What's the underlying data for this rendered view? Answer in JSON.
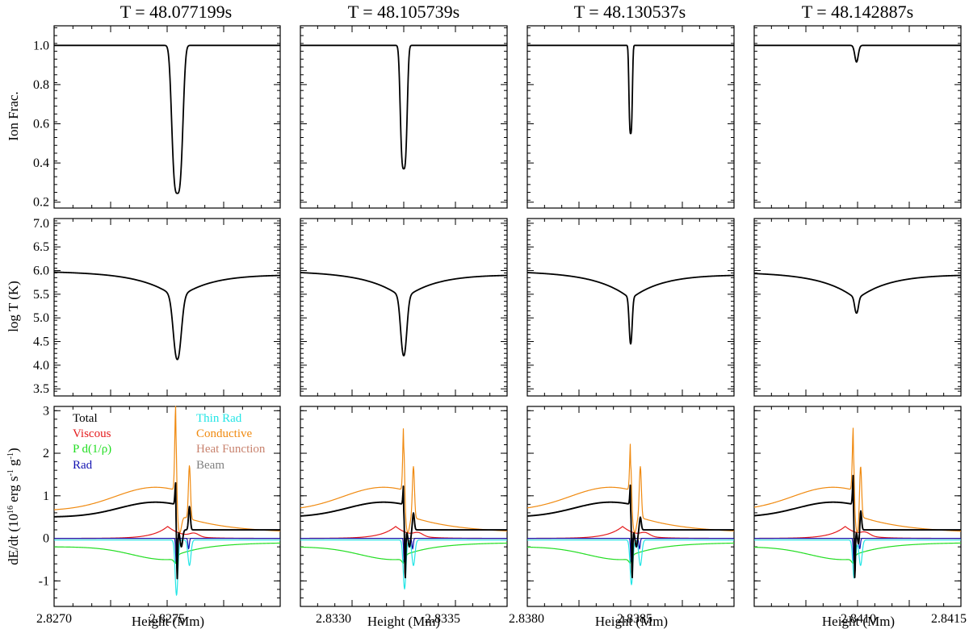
{
  "figure": {
    "titles": [
      "T = 48.077199s",
      "T = 48.105739s",
      "T = 48.130537s",
      "T = 48.142887s"
    ],
    "xlabel": "Height (Mm)",
    "row_ylabels": [
      "Ion Frac.",
      "log T (K)",
      "dE/dt (10",
      "16",
      " erg s",
      "-1",
      " g",
      "-1",
      ")"
    ]
  },
  "legend": {
    "entries": [
      {
        "label": "Total",
        "color": "#000000"
      },
      {
        "label": "Viscous",
        "color": "#e41a1c"
      },
      {
        "label": "P d(1/ρ)",
        "color": "#22dd22"
      },
      {
        "label": "Rad",
        "color": "#1010b0"
      },
      {
        "label": "Thin Rad",
        "color": "#22e5e5"
      },
      {
        "label": "Conductive",
        "color": "#f08a10"
      },
      {
        "label": "Heat Function",
        "color": "#c8826e"
      },
      {
        "label": "Beam",
        "color": "#808080"
      }
    ]
  },
  "chart_data": [
    {
      "type": "line",
      "name": "ion_fraction_row",
      "ylabel": "Ion Frac.",
      "ylim": [
        0.17,
        1.1
      ],
      "yticks": [
        0.2,
        0.4,
        0.6,
        0.8,
        1.0
      ],
      "ytick_labels": [
        "0.2",
        "0.4",
        "0.6",
        "0.8",
        "1.0"
      ],
      "panels": [
        {
          "title": "T = 48.077199s",
          "xlim": [
            2.827,
            2.82777
          ],
          "center": 2.8275,
          "min": 0.245,
          "half_width": 1.8e-05,
          "shape": "box"
        },
        {
          "title": "T = 48.105739s",
          "xlim": [
            2.83285,
            2.83362
          ],
          "center": 2.83335,
          "min": 0.37,
          "half_width": 1.2e-05,
          "shape": "box"
        },
        {
          "title": "T = 48.130537s",
          "xlim": [
            2.83795,
            2.83872
          ],
          "center": 2.8385,
          "min": 0.55,
          "half_width": 6e-06,
          "shape": "box"
        },
        {
          "title": "T = 48.142887s",
          "xlim": [
            2.84055,
            2.84155
          ],
          "center": 2.84108,
          "min": 0.915,
          "half_width": 1.2e-05,
          "shape": "dip"
        }
      ]
    },
    {
      "type": "line",
      "name": "log_temperature_row",
      "ylabel": "log T (K)",
      "ylim": [
        3.35,
        7.1
      ],
      "yticks": [
        3.5,
        4.0,
        4.5,
        5.0,
        5.5,
        6.0,
        6.5,
        7.0
      ],
      "ytick_labels": [
        "3.5",
        "4.0",
        "4.5",
        "5.0",
        "5.5",
        "6.0",
        "6.5",
        "7.0"
      ],
      "panels": [
        {
          "title": "T = 48.077199s",
          "left_value": 5.98,
          "right_value": 5.92,
          "min": 4.12,
          "center_value": 2.8275
        },
        {
          "title": "T = 48.105739s",
          "left_value": 5.98,
          "right_value": 5.92,
          "min": 4.2,
          "center_value": 2.83335
        },
        {
          "title": "T = 48.130537s",
          "left_value": 5.98,
          "right_value": 5.92,
          "min": 4.45,
          "center_value": 2.8385
        },
        {
          "title": "T = 48.142887s",
          "left_value": 5.96,
          "right_value": 5.92,
          "min": 5.1,
          "center_value": 2.84108
        }
      ]
    },
    {
      "type": "line",
      "name": "energy_rate_row",
      "ylabel": "dE/dt (10^16 erg s^-1 g^-1)",
      "ylim": [
        -1.6,
        3.1
      ],
      "yticks": [
        -1,
        0,
        1,
        2,
        3
      ],
      "ytick_labels": [
        "-1",
        "0",
        "1",
        "2",
        "3"
      ],
      "series": [
        "Total",
        "Viscous",
        "P d(1/ρ)",
        "Rad",
        "Thin Rad",
        "Conductive",
        "Heat Function",
        "Beam"
      ],
      "panels": [
        {
          "xticks": [
            2.827,
            2.8275
          ],
          "xtick_labels": [
            "2.8270",
            "2.8275"
          ],
          "cond_spike": 2.8,
          "cond_spike2": 1.55,
          "total_spike": 0.9,
          "total_peak2": 0.75,
          "thin_dip": -1.3,
          "pdv_dip": -0.55
        },
        {
          "xticks": [
            2.833,
            2.8335
          ],
          "xtick_labels": [
            "2.8330",
            "2.8335"
          ],
          "cond_spike": 2.4,
          "cond_spike2": 1.5,
          "total_spike": 0.85,
          "total_peak2": 0.6,
          "thin_dip": -1.15,
          "pdv_dip": -0.55
        },
        {
          "xticks": [
            2.838,
            2.8385
          ],
          "xtick_labels": [
            "2.8380",
            "2.8385"
          ],
          "cond_spike": 2.0,
          "cond_spike2": 1.5,
          "total_spike": 0.9,
          "total_peak2": 0.5,
          "thin_dip": -1.05,
          "pdv_dip": -0.5
        },
        {
          "xticks": [
            2.841,
            2.8415
          ],
          "xtick_labels": [
            "2.8410",
            "2.8415"
          ],
          "cond_spike": 2.3,
          "cond_spike2": 1.55,
          "total_spike": 1.2,
          "total_peak2": 0.8,
          "thin_dip": -0.9,
          "pdv_dip": -0.45
        }
      ]
    }
  ]
}
